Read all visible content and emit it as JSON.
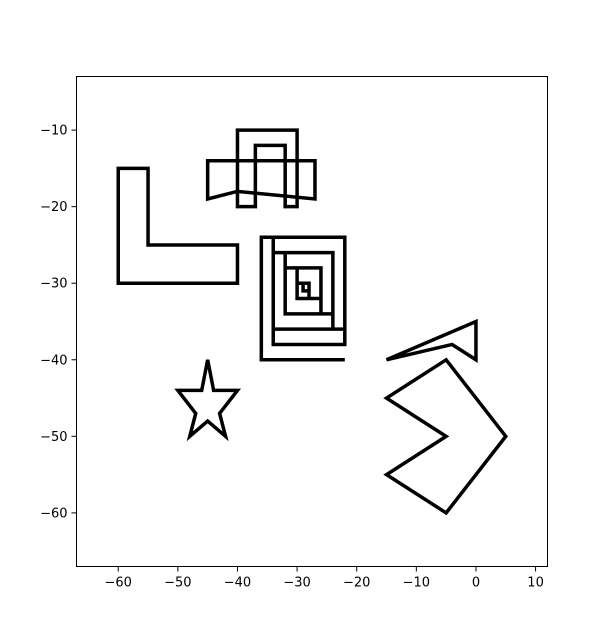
{
  "chart_data": {
    "type": "line",
    "title": "",
    "xlabel": "",
    "ylabel": "",
    "xlim": [
      -67,
      12
    ],
    "ylim": [
      -67,
      -3
    ],
    "grid": false,
    "legend": "none",
    "line_color": "#000000",
    "x_ticks": [
      {
        "value": -60,
        "label": "−60"
      },
      {
        "value": -50,
        "label": "−50"
      },
      {
        "value": -40,
        "label": "−40"
      },
      {
        "value": -30,
        "label": "−30"
      },
      {
        "value": -20,
        "label": "−20"
      },
      {
        "value": -10,
        "label": "−10"
      },
      {
        "value": 0,
        "label": "0"
      },
      {
        "value": 10,
        "label": "10"
      }
    ],
    "y_ticks": [
      {
        "value": -10,
        "label": "−10"
      },
      {
        "value": -20,
        "label": "−20"
      },
      {
        "value": -30,
        "label": "−30"
      },
      {
        "value": -40,
        "label": "−40"
      },
      {
        "value": -50,
        "label": "−50"
      },
      {
        "value": -60,
        "label": "−60"
      }
    ],
    "shapes": [
      {
        "id": "l-shape",
        "closed": true,
        "points": [
          [
            -60,
            -15
          ],
          [
            -55,
            -15
          ],
          [
            -55,
            -25
          ],
          [
            -40,
            -25
          ],
          [
            -40,
            -30
          ],
          [
            -60,
            -30
          ]
        ]
      },
      {
        "id": "arch-shape",
        "closed": true,
        "points": [
          [
            -40,
            -10
          ],
          [
            -30,
            -10
          ],
          [
            -30,
            -20
          ],
          [
            -32,
            -20
          ],
          [
            -32,
            -12
          ],
          [
            -37,
            -12
          ],
          [
            -37,
            -20
          ],
          [
            -40,
            -20
          ]
        ]
      },
      {
        "id": "band-shape",
        "closed": true,
        "points": [
          [
            -45,
            -14
          ],
          [
            -27,
            -14
          ],
          [
            -27,
            -19
          ],
          [
            -40,
            -18
          ],
          [
            -45,
            -19
          ]
        ]
      },
      {
        "id": "spiral-shape",
        "closed": false,
        "points": [
          [
            -22,
            -40
          ],
          [
            -36,
            -40
          ],
          [
            -36,
            -24
          ],
          [
            -22,
            -24
          ],
          [
            -22,
            -36
          ],
          [
            -34,
            -36
          ],
          [
            -34,
            -26
          ],
          [
            -24,
            -26
          ],
          [
            -24,
            -34
          ],
          [
            -32,
            -34
          ],
          [
            -32,
            -28
          ],
          [
            -26,
            -28
          ],
          [
            -26,
            -32
          ],
          [
            -30,
            -32
          ],
          [
            -30,
            -30
          ],
          [
            -28,
            -30
          ],
          [
            -28,
            -31
          ],
          [
            -29,
            -31
          ],
          [
            -29,
            -30
          ],
          [
            -28,
            -30
          ],
          [
            -28,
            -32
          ],
          [
            -30,
            -32
          ],
          [
            -30,
            -28
          ],
          [
            -26,
            -28
          ],
          [
            -26,
            -34
          ],
          [
            -32,
            -34
          ],
          [
            -32,
            -26
          ],
          [
            -24,
            -26
          ],
          [
            -24,
            -36
          ],
          [
            -34,
            -36
          ],
          [
            -34,
            -24
          ],
          [
            -22,
            -24
          ],
          [
            -22,
            -38
          ],
          [
            -34,
            -38
          ],
          [
            -34,
            -26
          ]
        ]
      },
      {
        "id": "triangle-shape",
        "closed": true,
        "points": [
          [
            -15,
            -40
          ],
          [
            0,
            -35
          ],
          [
            0,
            -40
          ],
          [
            -4,
            -38
          ]
        ]
      },
      {
        "id": "star-shape",
        "closed": true,
        "points": [
          [
            -45,
            -40
          ],
          [
            -44,
            -44
          ],
          [
            -40,
            -44
          ],
          [
            -43,
            -47
          ],
          [
            -42,
            -50
          ],
          [
            -45,
            -48
          ],
          [
            -48,
            -50
          ],
          [
            -47,
            -47
          ],
          [
            -50,
            -44
          ],
          [
            -46,
            -44
          ]
        ]
      },
      {
        "id": "chevron-shape",
        "closed": true,
        "points": [
          [
            -15,
            -45
          ],
          [
            -5,
            -40
          ],
          [
            5,
            -50
          ],
          [
            -5,
            -60
          ],
          [
            -15,
            -55
          ],
          [
            -5,
            -50
          ]
        ]
      }
    ]
  }
}
